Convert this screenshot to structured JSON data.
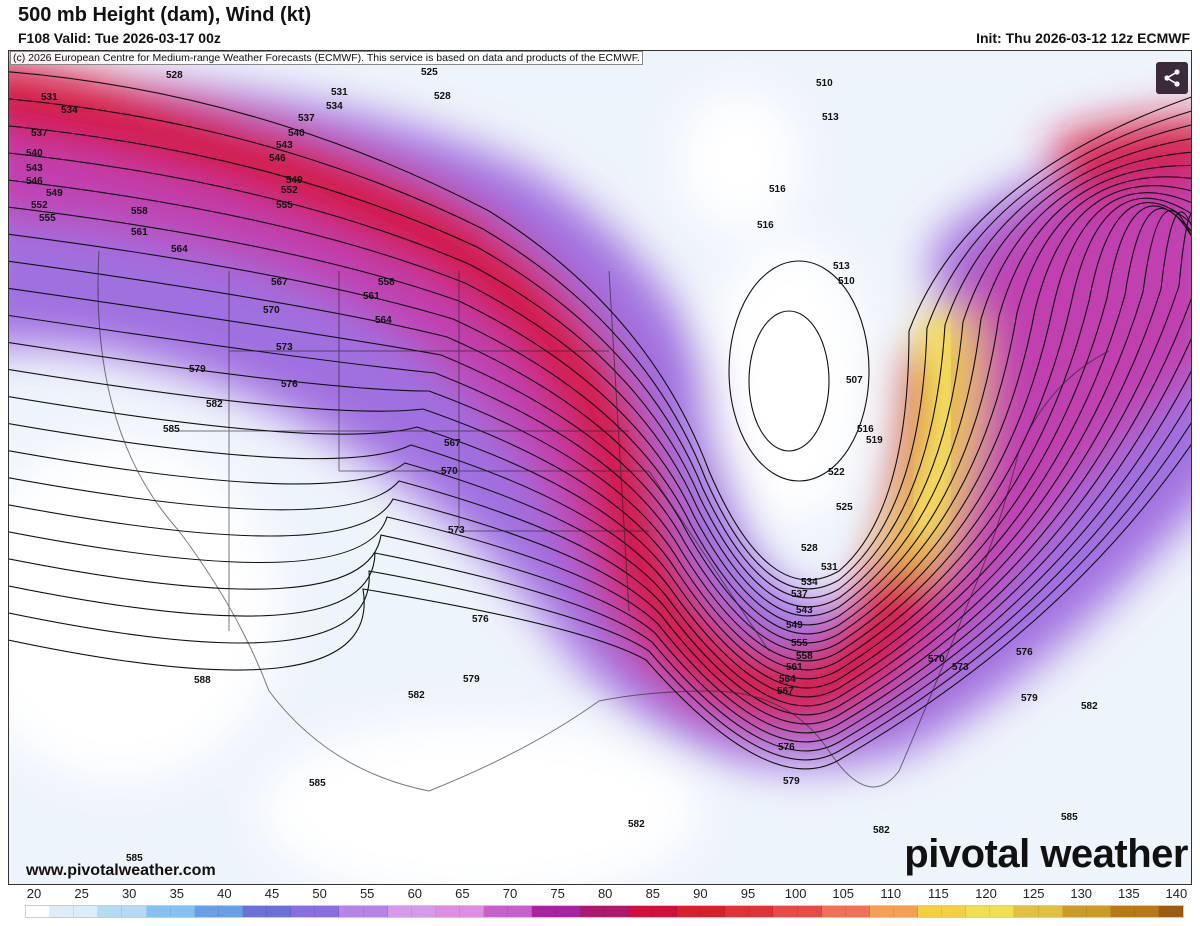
{
  "header": {
    "title": "500 mb Height (dam), Wind (kt)",
    "valid": "F108 Valid: Tue 2026-03-17 00z",
    "init": "Init: Thu 2026-03-12 12z ECMWF"
  },
  "copyright": "(c) 2026 European Centre for Medium-range Weather Forecasts (ECMWF). This service is based on data and products of the ECMWF.",
  "share_icon": "share-icon",
  "watermark": {
    "site": "www.pivotalweather.com",
    "brand": "pivotal weather"
  },
  "colorbar": {
    "unit": "kt",
    "ticks": [
      "20",
      "25",
      "30",
      "35",
      "40",
      "45",
      "50",
      "55",
      "60",
      "65",
      "70",
      "75",
      "80",
      "85",
      "90",
      "95",
      "100",
      "105",
      "110",
      "115",
      "120",
      "125",
      "130",
      "135",
      "140"
    ],
    "colors": [
      "#ffffff",
      "#dcecf8",
      "#b4daf4",
      "#86c2f0",
      "#6a9ee6",
      "#6a70d8",
      "#8a6ee0",
      "#b883e6",
      "#d79ae8",
      "#dc8fe0",
      "#c860cc",
      "#a8239e",
      "#b01870",
      "#d0103a",
      "#d8202c",
      "#e03038",
      "#e84a48",
      "#f0705a",
      "#f4a050",
      "#f4d040",
      "#f0e050",
      "#e0c040",
      "#cc9a28",
      "#b87818",
      "#a05a10"
    ]
  },
  "contour_labels": [
    "528",
    "531",
    "534",
    "537",
    "540",
    "543",
    "546",
    "549",
    "552",
    "555",
    "558",
    "561",
    "564",
    "567",
    "570",
    "573",
    "579",
    "576",
    "582",
    "585",
    "588",
    "585",
    "585",
    "582",
    "579",
    "576",
    "573",
    "570",
    "567",
    "564",
    "561",
    "558",
    "525",
    "528",
    "531",
    "534",
    "537",
    "540",
    "543",
    "546",
    "549",
    "552",
    "555",
    "510",
    "513",
    "516",
    "516",
    "513",
    "510",
    "507",
    "516",
    "519",
    "522",
    "525",
    "528",
    "531",
    "534",
    "537",
    "543",
    "549",
    "555",
    "558",
    "561",
    "564",
    "567",
    "570",
    "573",
    "576",
    "579",
    "582",
    "585",
    "576",
    "579",
    "582",
    "582"
  ]
}
